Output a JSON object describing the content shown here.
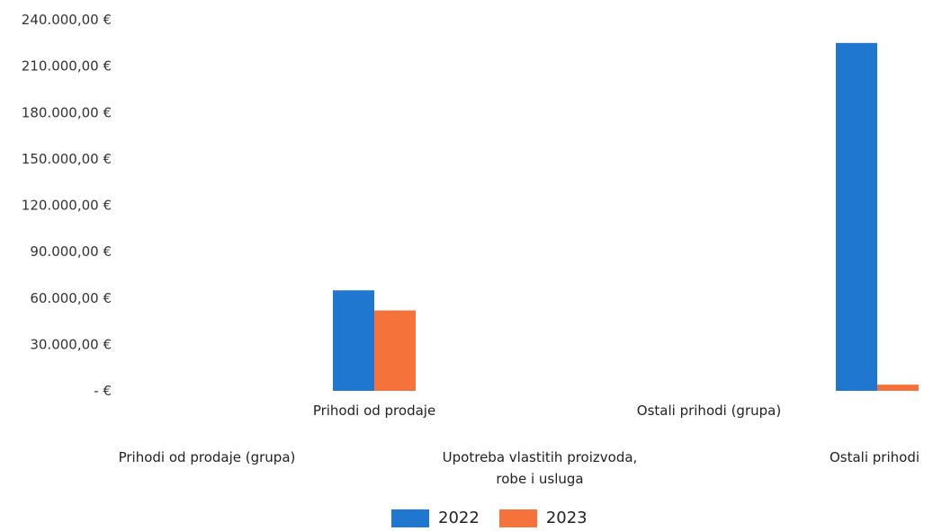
{
  "chart_data": {
    "type": "bar",
    "y_ticks": [
      "240.000,00 €",
      "210.000,00 €",
      "180.000,00 €",
      "150.000,00 €",
      "120.000,00 €",
      "90.000,00 €",
      "60.000,00 €",
      "30.000,00 €",
      "-   €"
    ],
    "ylim": [
      0,
      240000
    ],
    "grid": false,
    "categories": [
      {
        "label": [
          "Prihodi od prodaje (grupa)"
        ],
        "row": "lower"
      },
      {
        "label": [
          "Prihodi od prodaje"
        ],
        "row": "upper"
      },
      {
        "label": [
          "Upotreba vlastitih proizvoda,",
          "robe i usluga"
        ],
        "row": "lower"
      },
      {
        "label": [
          "Ostali prihodi (grupa)"
        ],
        "row": "upper"
      },
      {
        "label": [
          "Ostali prihodi"
        ],
        "row": "lower"
      }
    ],
    "series": [
      {
        "name": "2022",
        "color": "#1f77d0",
        "values": [
          0,
          65000,
          0,
          0,
          225000
        ]
      },
      {
        "name": "2023",
        "color": "#f5733a",
        "values": [
          0,
          52000,
          0,
          0,
          4000
        ]
      }
    ],
    "legend_position": "bottom-center"
  }
}
